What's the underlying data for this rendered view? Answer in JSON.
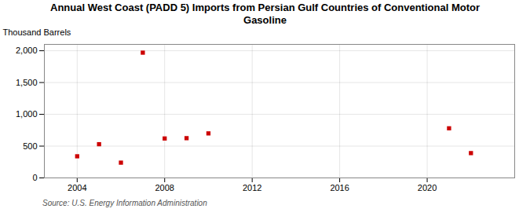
{
  "chart_data": {
    "type": "scatter",
    "title": "Annual West Coast (PADD 5) Imports from Persian Gulf Countries of Conventional Motor\nGasoline",
    "ylabel": "Thousand Barrels",
    "annotations": [
      "Source: U.S. Energy Information Administration"
    ],
    "x": [
      2004,
      2005,
      2006,
      2007,
      2008,
      2009,
      2010,
      2021,
      2022
    ],
    "values": [
      340,
      530,
      240,
      1970,
      620,
      625,
      700,
      780,
      390
    ],
    "color": "#cc0000",
    "marker": "square",
    "xlim": [
      2002.5,
      2024
    ],
    "xticks": [
      2004,
      2008,
      2012,
      2016,
      2020
    ],
    "ylim": [
      0,
      2100
    ],
    "yticks": [
      0,
      500,
      {
        "value": 1000,
        "label": "1,000"
      },
      {
        "value": 1500,
        "label": "1,500"
      },
      {
        "value": 2000,
        "label": "2,000"
      }
    ],
    "grid": true
  }
}
